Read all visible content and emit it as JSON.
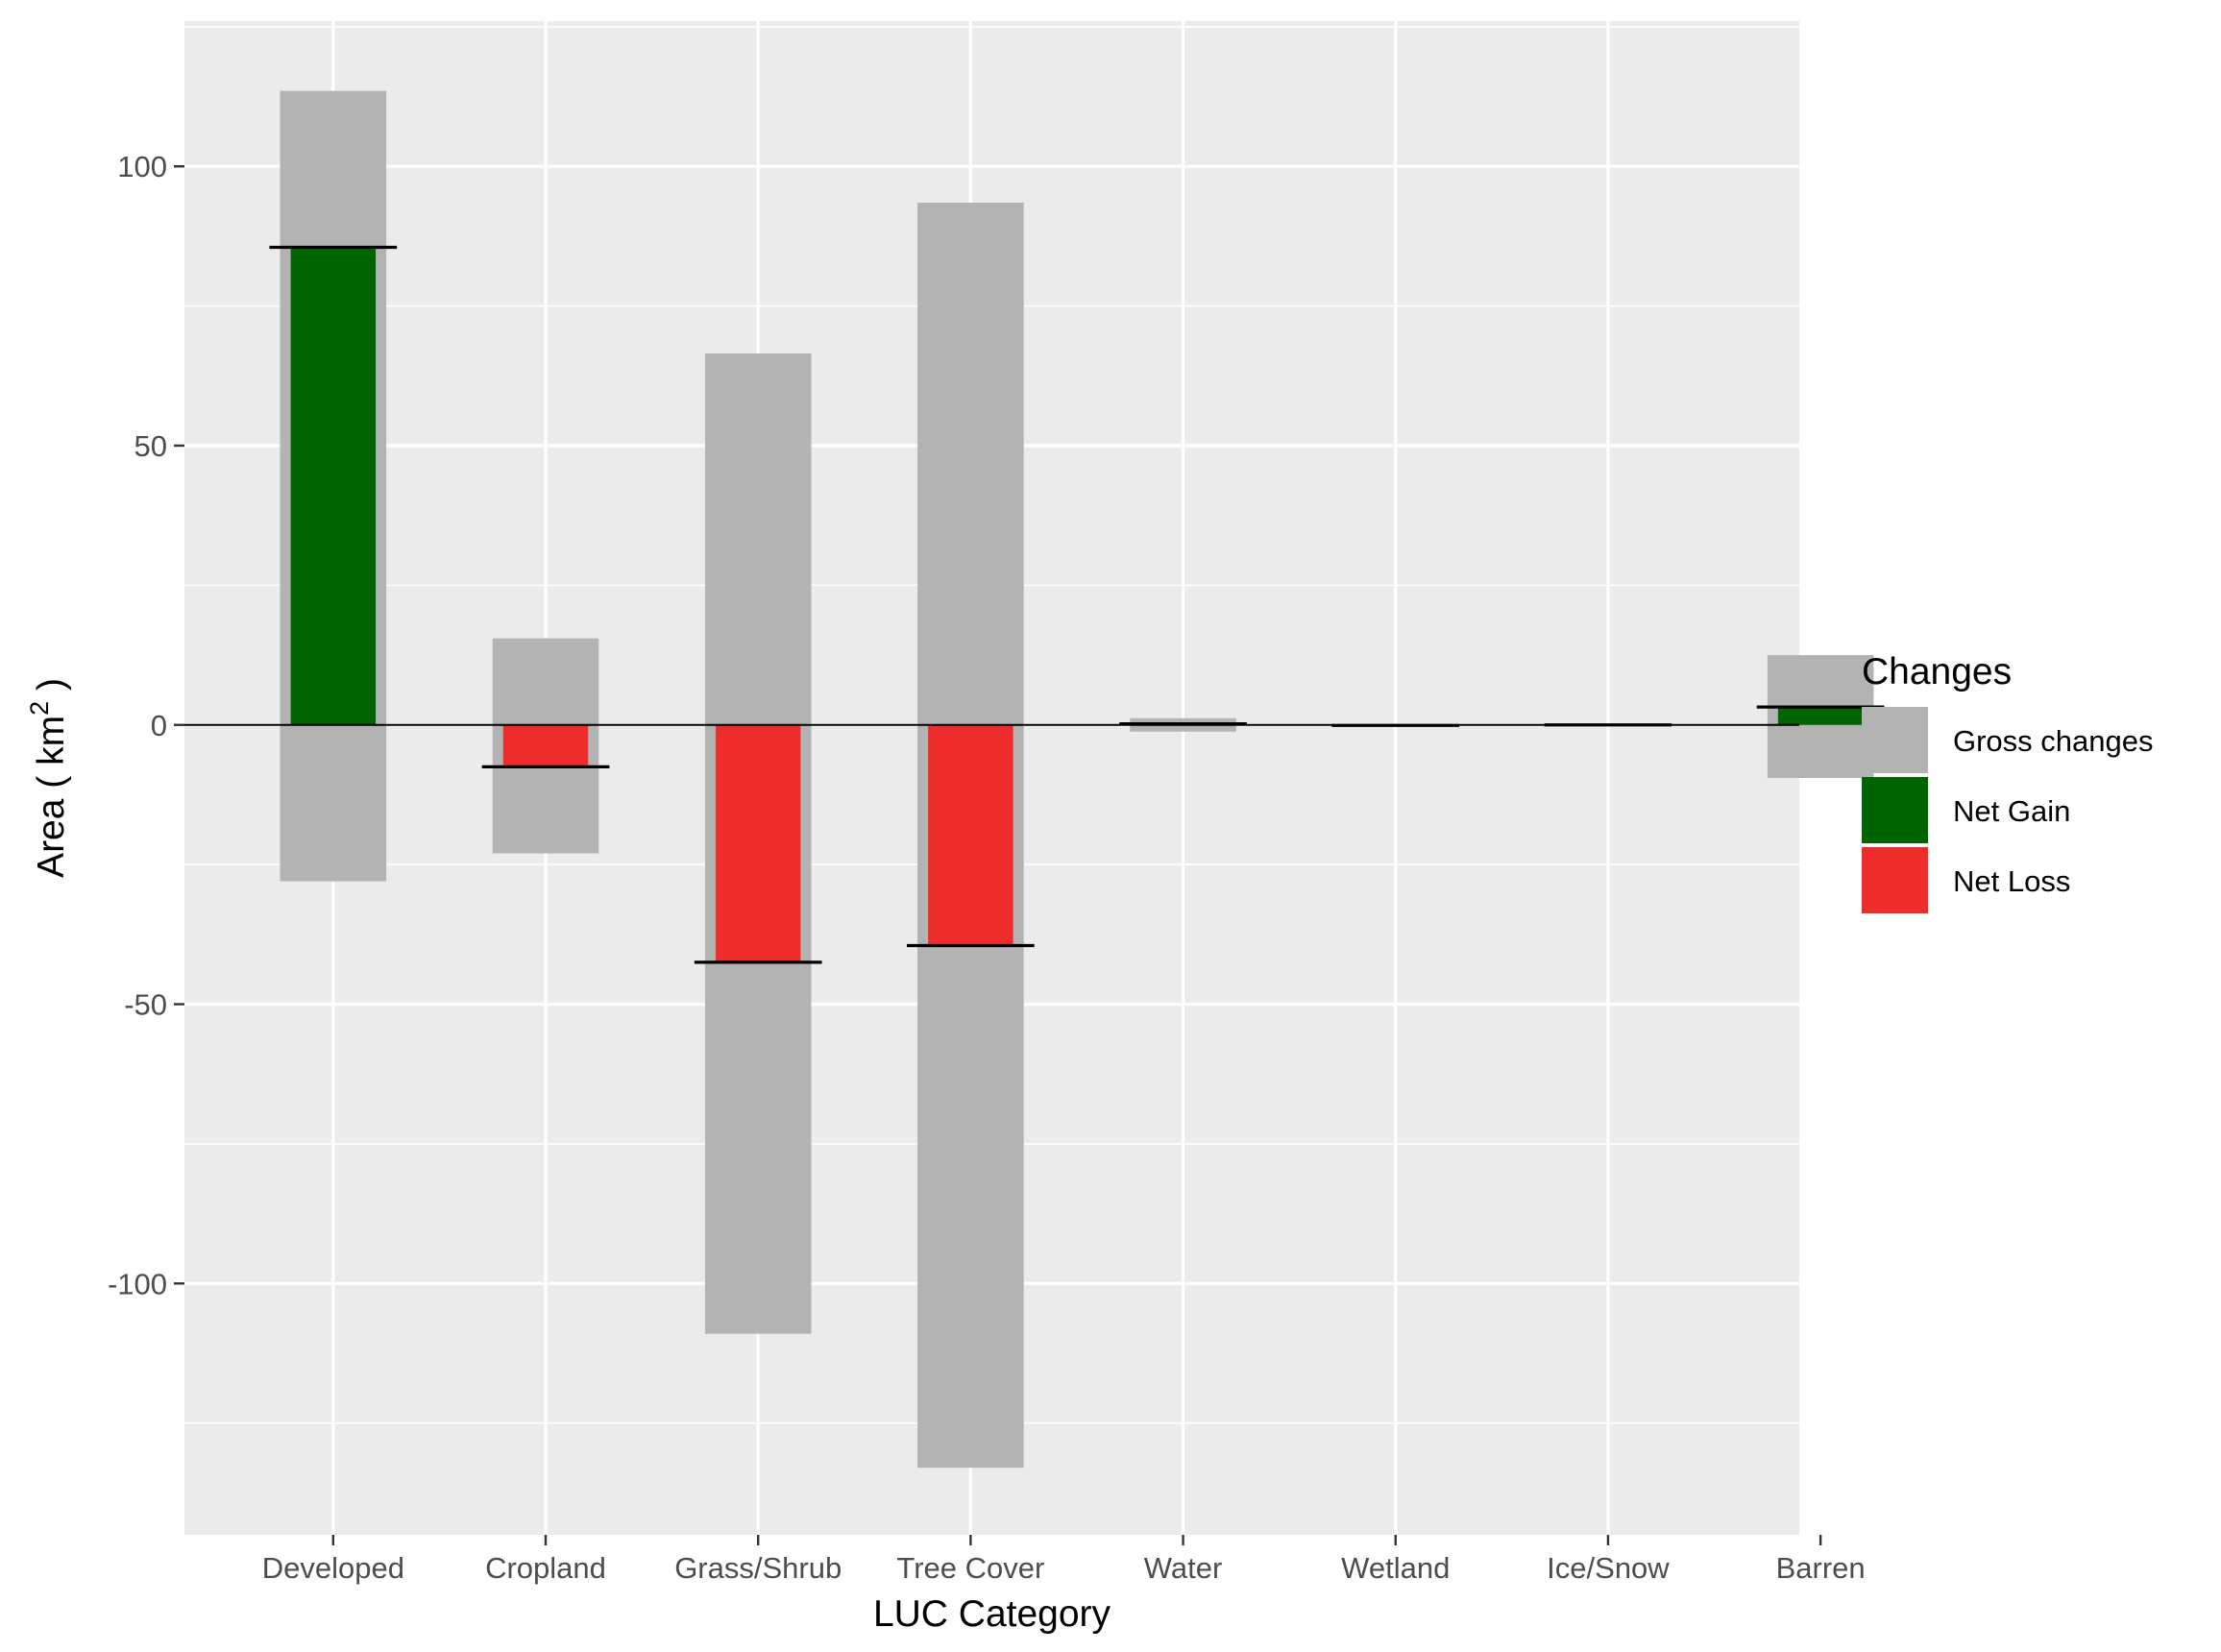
{
  "chart_data": {
    "type": "bar",
    "title": "",
    "xlabel": "LUC Category",
    "ylabel": {
      "prefix": "Area ( km",
      "sup": "2",
      "suffix": " )"
    },
    "categories": [
      "Developed",
      "Cropland",
      "Grass/Shrub",
      "Tree Cover",
      "Water",
      "Wetland",
      "Ice/Snow",
      "Barren"
    ],
    "ylim": [
      -145,
      126
    ],
    "yticks": [
      -100,
      -50,
      0,
      50,
      100
    ],
    "ytick_labels": [
      "-100",
      "-50",
      "0",
      "50",
      "100"
    ],
    "grid": true,
    "series": [
      {
        "name": "Gross changes",
        "key": "gross",
        "color": "#b3b3b3",
        "upper": [
          113.5,
          15.5,
          66.5,
          93.5,
          1.2,
          0.2,
          0.2,
          12.5
        ],
        "lower": [
          -28,
          -23,
          -109,
          -133,
          -1.2,
          -0.2,
          -0.2,
          -9.5
        ]
      },
      {
        "name": "Net Gain",
        "key": "gain",
        "color": "#006400"
      },
      {
        "name": "Net Loss",
        "key": "loss",
        "color": "#ee2c2c"
      }
    ],
    "net_change": [
      85.5,
      -7.5,
      -42.5,
      -39.5,
      0.2,
      -0.1,
      0.0,
      3.2
    ],
    "legend": {
      "title": "Changes",
      "position": "right"
    }
  }
}
